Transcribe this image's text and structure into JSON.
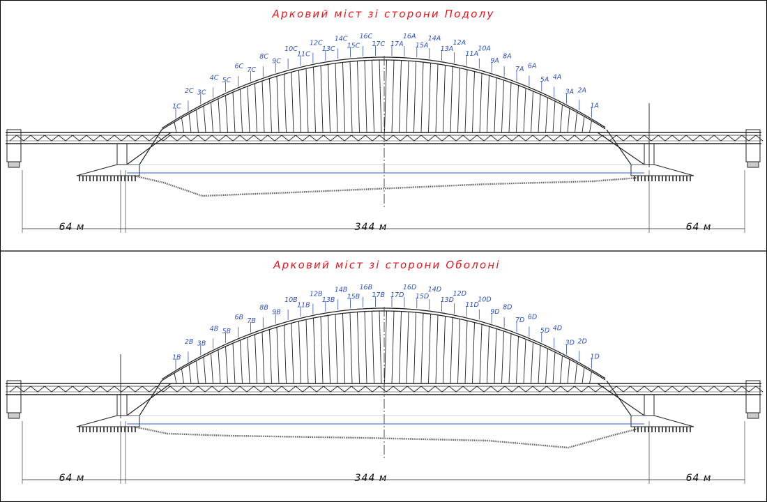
{
  "panels": [
    {
      "title": "Арковий міст зі сторони Подолу",
      "left_labels": [
        "1C",
        "2C",
        "3C",
        "4C",
        "5C",
        "6C",
        "7C",
        "8C",
        "9C",
        "10C",
        "11C",
        "12C",
        "13C",
        "14C",
        "15C",
        "16C",
        "17C"
      ],
      "right_labels": [
        "17A",
        "16A",
        "15A",
        "14A",
        "13A",
        "12A",
        "11A",
        "10A",
        "9A",
        "8A",
        "7A",
        "6A",
        "5A",
        "4A",
        "3A",
        "2A",
        "1A"
      ],
      "dimensions": {
        "left_span": "64 м",
        "main_span": "344 м",
        "right_span": "64 м"
      },
      "riverbed": "podil"
    },
    {
      "title": "Арковий міст зі сторони Оболоні",
      "left_labels": [
        "1B",
        "2B",
        "3B",
        "4B",
        "5B",
        "6B",
        "7B",
        "8B",
        "9B",
        "10B",
        "11B",
        "12B",
        "13B",
        "14B",
        "15B",
        "16B",
        "17B"
      ],
      "right_labels": [
        "17D",
        "16D",
        "15D",
        "14D",
        "13D",
        "12D",
        "11D",
        "10D",
        "9D",
        "8D",
        "7D",
        "6D",
        "5D",
        "4D",
        "3D",
        "2D",
        "1D"
      ],
      "dimensions": {
        "left_span": "64 м",
        "main_span": "344 м",
        "right_span": "64 м"
      },
      "riverbed": "obolon"
    }
  ],
  "colors": {
    "title": "#e8141c",
    "labels": "#2b4fc0",
    "water": "#2a5bd7",
    "structure": "#222222",
    "frame": "#000000"
  }
}
